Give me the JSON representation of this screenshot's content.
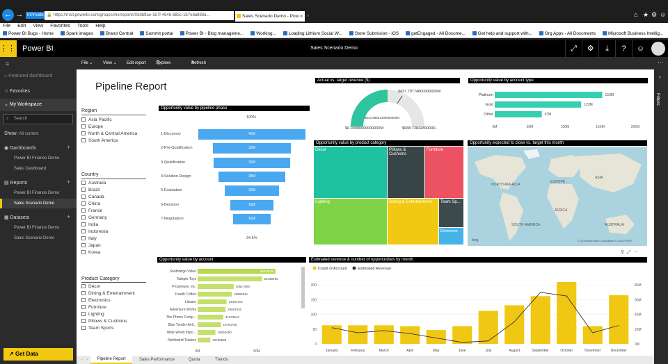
{
  "browser": {
    "inprivate": "InPrivate",
    "url": "https://msit.powerbi.com/groups/me/reports/03db9ae-1b7f-4646-885c-1b7eda888a...",
    "tab_title": "Sales Scenario Demo - Pow...",
    "menu": [
      "File",
      "Edit",
      "View",
      "Favorites",
      "Tools",
      "Help"
    ],
    "favorites": [
      "Power BI Bugs - Home",
      "Spark images",
      "Brand Central",
      "Summit portal",
      "Power BI - Blog manageme...",
      "Working...",
      "Loading Lithium Social W...",
      "Store Submision - iOS",
      "getEngaged - All Docume...",
      "Get help and support with...",
      "Org Apps - All Documents",
      "Microsoft Business Intellig..."
    ]
  },
  "app": {
    "brand": "Power BI",
    "report_title": "Sales Scenario Demo"
  },
  "nav": {
    "featured": "Featured dashboard",
    "favorites": "Favorites",
    "my_workspace": "My Workspace",
    "search_placeholder": "Search",
    "show_label": "Show:",
    "show_value": "All content",
    "dashboards": "Dashboards",
    "dashboards_items": [
      "Power BI Finance Demo",
      "Sales Dashboard"
    ],
    "reports": "Reports",
    "reports_items": [
      "Power BI Finance Demo",
      "Sales Scenario Demo"
    ],
    "datasets": "Datasets",
    "datasets_items": [
      "Power BI Finance Demo",
      "Sales Scenario Demo"
    ],
    "get_data": "Get Data"
  },
  "toolbar": {
    "file": "File ⌄",
    "view": "View ⌄",
    "edit": "Edit report",
    "explore": "Explore ⌄",
    "refresh": "Refresh",
    "filters": "Filters"
  },
  "report": {
    "title": "Pipeline Report",
    "region": {
      "header": "Region",
      "items": [
        "Asia Pacific",
        "Europe",
        "North & Central America",
        "South America"
      ]
    },
    "country": {
      "header": "Country",
      "items": [
        "Australia",
        "Brazil",
        "Canada",
        "China",
        "France",
        "Germany",
        "India",
        "Indonesia",
        "Italy",
        "Japan",
        "Korea"
      ]
    },
    "category": {
      "header": "Product Category",
      "items": [
        "Décor",
        "Dining & Entertainment",
        "Electronics",
        "Furniture",
        "Lighting",
        "Pillows & Cushions",
        "Team Sports"
      ]
    },
    "funnel": {
      "title": "Opportunity value by pipeline phase",
      "top_pct": "100%",
      "bottom_pct": "34.6%",
      "stages": [
        {
          "name": "1-Discovery",
          "label": "45M",
          "value": 45
        },
        {
          "name": "2-Pre-Qualification",
          "label": "33M",
          "value": 33
        },
        {
          "name": "3-Qualification",
          "label": "32M",
          "value": 32
        },
        {
          "name": "4-Solution Design",
          "label": "28M",
          "value": 28
        },
        {
          "name": "5-Evaluation",
          "label": "23M",
          "value": 23
        },
        {
          "name": "6-Decision",
          "label": "18M",
          "value": 18
        },
        {
          "name": "7-Negotiation",
          "label": "16M",
          "value": 16
        }
      ]
    },
    "gauge": {
      "title": "Actual vs. target  revenue ($)",
      "target": "$437.79774800000000M",
      "value": "$344.36921400000000M",
      "min": "$0.00000000000000M",
      "max": "$688.73842800000...",
      "fraction": 0.5
    },
    "acct_type": {
      "title": "Opportunity value by account type",
      "categories": [
        "Platinum",
        "Gold",
        "Other"
      ],
      "values": [
        153,
        123,
        67
      ],
      "labels": [
        "153M",
        "123M",
        "67M"
      ],
      "ticks": [
        "0M",
        "50M",
        "100M",
        "150M",
        "200M"
      ],
      "max": 200
    },
    "treemap": {
      "title": "Opportunity value by product category",
      "tiles": [
        "Décor",
        "Pillows & Cushions",
        "Furniture",
        "Lighting",
        "Dining & Entertainment",
        "Team Sp...",
        "Electronics"
      ]
    },
    "map": {
      "title": "Opportunity expected to close vs. target this month",
      "labels": [
        "NORTH AMERICA",
        "EUROPE",
        "ASIA",
        "AFRICA",
        "SOUTH AMERICA",
        "AUSTRALIA"
      ],
      "credit": "© 2018 Microsoft Corporation   © 2018 HERE",
      "bing": "bing"
    },
    "account": {
      "title": "Opportunity value by account",
      "names": [
        "Southridge Video",
        "Tailspin Toys",
        "Proseware, Inc.",
        "Fourth Coffee",
        "Litware",
        "Adventure Works",
        "The Phone Comp...",
        "Blue Yonder Airli...",
        "Wide World Impo...",
        "Northwind Traders"
      ],
      "values": [
        65845290,
        54439490,
        30517600,
        28865941,
        24454715,
        23587630,
        21673610,
        19704750,
        15050450,
        10760650
      ],
      "labels": [
        "65845290",
        "54439490",
        "30517600",
        "28865941",
        "24454715",
        "23587630",
        "21673610",
        "19704750",
        "15050450",
        "10760650"
      ],
      "ticks": [
        "0M",
        "50M"
      ],
      "max": 100000000
    },
    "monthly": {
      "title": "Estimated revenue & number of opportunities by month",
      "legend": [
        "Count of Account",
        "Estimated Revenue"
      ],
      "months": [
        "January",
        "February",
        "March",
        "April",
        "May",
        "June",
        "July",
        "August",
        "September",
        "October",
        "November",
        "December"
      ],
      "count": [
        63,
        63,
        63,
        60,
        47,
        60,
        112,
        131,
        162,
        210,
        60,
        165
      ],
      "revenue": [
        22,
        15,
        18,
        14,
        8,
        2,
        4,
        30,
        70,
        65,
        15,
        25
      ],
      "left_ticks": [
        "0",
        "50",
        "100",
        "150",
        "200"
      ],
      "right_ticks": [
        "0M",
        "20M",
        "40M",
        "60M",
        "80M"
      ],
      "count_max": 250,
      "rev_max": 100
    },
    "tabs": [
      "Pipeline Report",
      "Sales Performance",
      "Quota",
      "Trends"
    ]
  },
  "colors": {
    "funnel": "#4aa8f0",
    "gauge_fill": "#2ec4a0",
    "gauge_track": "#e6e6e6",
    "acct_bar": "#35cfb1",
    "acct_name_bar": "#b6d84c",
    "tm_decor": "#1ec2a0",
    "tm_pillows": "#374547",
    "tm_furniture": "#ec5262",
    "tm_lighting": "#7ed347",
    "tm_dining": "#f1c912",
    "tm_teamsports": "#3d4a4c",
    "tm_electronics": "#46b4e8",
    "column": "#f0c814",
    "line": "#333333",
    "accent": "#f2c811"
  }
}
